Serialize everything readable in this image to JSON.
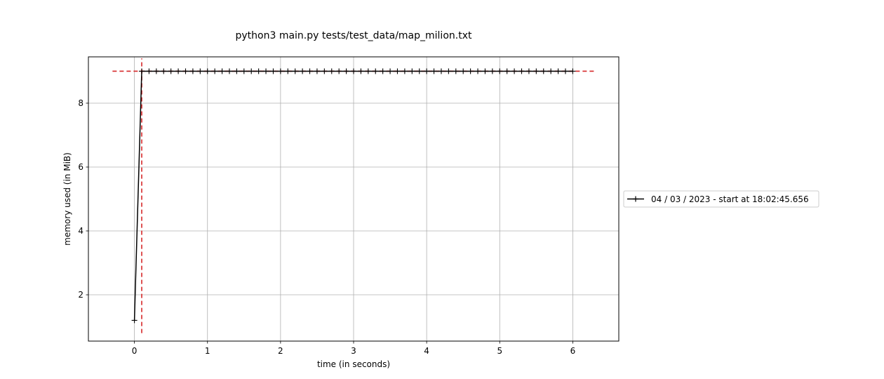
{
  "chart_data": {
    "type": "line",
    "title": "python3 main.py tests/test_data/map_milion.txt",
    "xlabel": "time (in seconds)",
    "ylabel": "memory used (in MiB)",
    "xlim": [
      -0.63,
      6.63
    ],
    "ylim": [
      0.55,
      9.45
    ],
    "xticks": [
      0,
      1,
      2,
      3,
      4,
      5,
      6
    ],
    "yticks": [
      2,
      4,
      6,
      8
    ],
    "grid": true,
    "legend_position": "right, outside plot",
    "series": [
      {
        "name": "04 / 03 / 2023 - start at 18:02:45.656",
        "color": "#000000",
        "marker": "+",
        "x": [
          0,
          0.1,
          0.2,
          0.3,
          0.4,
          0.5,
          0.6,
          0.7,
          0.8,
          0.9,
          1.0,
          1.1,
          1.2,
          1.3,
          1.4,
          1.5,
          1.6,
          1.7,
          1.8,
          1.9,
          2.0,
          2.1,
          2.2,
          2.3,
          2.4,
          2.5,
          2.6,
          2.7,
          2.8,
          2.9,
          3.0,
          3.1,
          3.2,
          3.3,
          3.4,
          3.5,
          3.6,
          3.7,
          3.8,
          3.9,
          4.0,
          4.1,
          4.2,
          4.3,
          4.4,
          4.5,
          4.6,
          4.7,
          4.8,
          4.9,
          5.0,
          5.1,
          5.2,
          5.3,
          5.4,
          5.5,
          5.6,
          5.7,
          5.8,
          5.9,
          6.0
        ],
        "y": [
          1.2,
          9.0,
          9.0,
          9.0,
          9.0,
          9.0,
          9.0,
          9.0,
          9.0,
          9.0,
          9.0,
          9.0,
          9.0,
          9.0,
          9.0,
          9.0,
          9.0,
          9.0,
          9.0,
          9.0,
          9.0,
          9.0,
          9.0,
          9.0,
          9.0,
          9.0,
          9.0,
          9.0,
          9.0,
          9.0,
          9.0,
          9.0,
          9.0,
          9.0,
          9.0,
          9.0,
          9.0,
          9.0,
          9.0,
          9.0,
          9.0,
          9.0,
          9.0,
          9.0,
          9.0,
          9.0,
          9.0,
          9.0,
          9.0,
          9.0,
          9.0,
          9.0,
          9.0,
          9.0,
          9.0,
          9.0,
          9.0,
          9.0,
          9.0,
          9.0,
          9.0
        ]
      }
    ],
    "reference_lines": [
      {
        "orientation": "horizontal",
        "value": 9.0,
        "from": -0.3,
        "to": 6.3,
        "color": "#d62728",
        "style": "dashed"
      },
      {
        "orientation": "vertical",
        "value": 0.1,
        "from": 0.8,
        "to": 9.4,
        "color": "#d62728",
        "style": "dashed"
      }
    ]
  }
}
